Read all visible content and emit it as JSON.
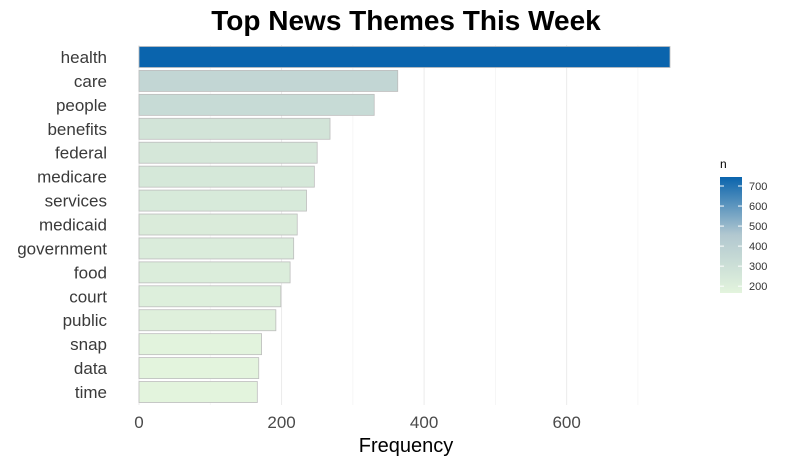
{
  "chart_data": {
    "type": "bar",
    "orientation": "horizontal",
    "title": "Top News Themes This Week",
    "xlabel": "Frequency",
    "ylabel": "",
    "categories": [
      "health",
      "care",
      "people",
      "benefits",
      "federal",
      "medicare",
      "services",
      "medicaid",
      "government",
      "food",
      "court",
      "public",
      "snap",
      "data",
      "time"
    ],
    "values": [
      745,
      363,
      330,
      268,
      250,
      246,
      235,
      222,
      217,
      212,
      199,
      192,
      172,
      168,
      166
    ],
    "xlim": [
      0,
      760
    ],
    "xticks": [
      0,
      200,
      400,
      600
    ],
    "grid": true,
    "legend": {
      "title": "n",
      "position": "right",
      "ticks": [
        200,
        300,
        400,
        500,
        600,
        700
      ],
      "range": [
        166,
        745
      ],
      "color_low": "#e3f4dd",
      "color_mid": "#b2c8d0",
      "color_high": "#0a64ad"
    }
  }
}
